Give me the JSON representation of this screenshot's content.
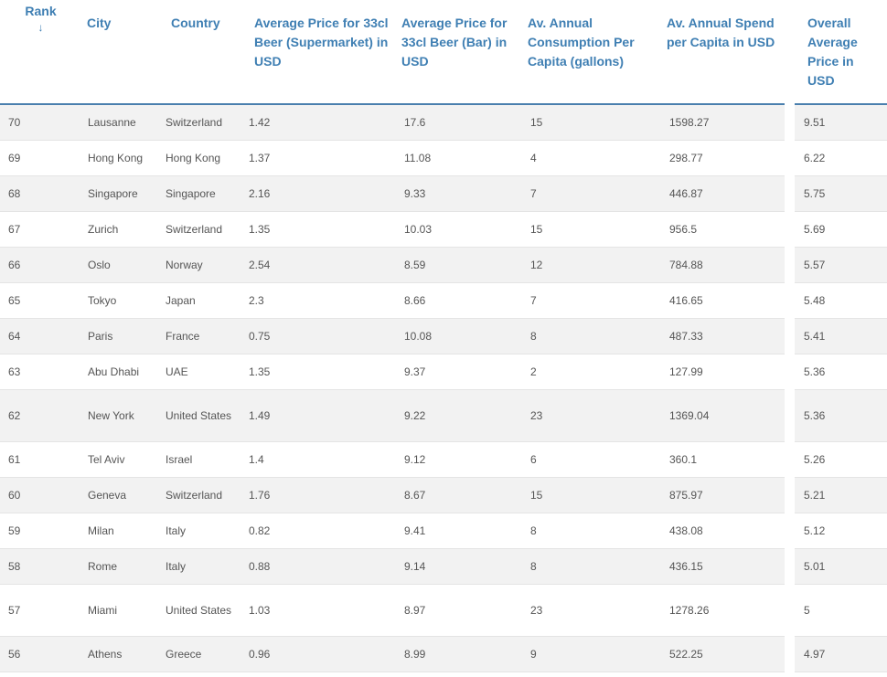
{
  "columns": {
    "rank": "Rank",
    "sort_indicator": "↓",
    "city": "City",
    "country": "Country",
    "supermarket": "Average Price for 33cl Beer (Supermarket) in USD",
    "bar": "Average Price for 33cl Beer (Bar) in USD",
    "consumption": "Av. Annual Consumption Per Capita (gallons)",
    "spend": "Av. Annual Spend per Capita in USD",
    "overall": "Overall Average Price in USD"
  },
  "rows": [
    {
      "rank": "70",
      "city": "Lausanne",
      "country": "Switzerland",
      "supermarket": "1.42",
      "bar": "17.6",
      "consumption": "15",
      "spend": "1598.27",
      "overall": "9.51"
    },
    {
      "rank": "69",
      "city": "Hong Kong",
      "country": "Hong Kong",
      "supermarket": "1.37",
      "bar": "11.08",
      "consumption": "4",
      "spend": "298.77",
      "overall": "6.22"
    },
    {
      "rank": "68",
      "city": "Singapore",
      "country": "Singapore",
      "supermarket": "2.16",
      "bar": "9.33",
      "consumption": "7",
      "spend": "446.87",
      "overall": "5.75"
    },
    {
      "rank": "67",
      "city": "Zurich",
      "country": "Switzerland",
      "supermarket": "1.35",
      "bar": "10.03",
      "consumption": "15",
      "spend": "956.5",
      "overall": "5.69"
    },
    {
      "rank": "66",
      "city": "Oslo",
      "country": "Norway",
      "supermarket": "2.54",
      "bar": "8.59",
      "consumption": "12",
      "spend": "784.88",
      "overall": "5.57"
    },
    {
      "rank": "65",
      "city": "Tokyo",
      "country": "Japan",
      "supermarket": "2.3",
      "bar": "8.66",
      "consumption": "7",
      "spend": "416.65",
      "overall": "5.48"
    },
    {
      "rank": "64",
      "city": "Paris",
      "country": "France",
      "supermarket": "0.75",
      "bar": "10.08",
      "consumption": "8",
      "spend": "487.33",
      "overall": "5.41"
    },
    {
      "rank": "63",
      "city": "Abu Dhabi",
      "country": "UAE",
      "supermarket": "1.35",
      "bar": "9.37",
      "consumption": "2",
      "spend": "127.99",
      "overall": "5.36"
    },
    {
      "rank": "62",
      "city": "New York",
      "country": "United States",
      "supermarket": "1.49",
      "bar": "9.22",
      "consumption": "23",
      "spend": "1369.04",
      "overall": "5.36"
    },
    {
      "rank": "61",
      "city": "Tel Aviv",
      "country": "Israel",
      "supermarket": "1.4",
      "bar": "9.12",
      "consumption": "6",
      "spend": "360.1",
      "overall": "5.26"
    },
    {
      "rank": "60",
      "city": "Geneva",
      "country": "Switzerland",
      "supermarket": "1.76",
      "bar": "8.67",
      "consumption": "15",
      "spend": "875.97",
      "overall": "5.21"
    },
    {
      "rank": "59",
      "city": "Milan",
      "country": "Italy",
      "supermarket": "0.82",
      "bar": "9.41",
      "consumption": "8",
      "spend": "438.08",
      "overall": "5.12"
    },
    {
      "rank": "58",
      "city": "Rome",
      "country": "Italy",
      "supermarket": "0.88",
      "bar": "9.14",
      "consumption": "8",
      "spend": "436.15",
      "overall": "5.01"
    },
    {
      "rank": "57",
      "city": "Miami",
      "country": "United States",
      "supermarket": "1.03",
      "bar": "8.97",
      "consumption": "23",
      "spend": "1278.26",
      "overall": "5"
    },
    {
      "rank": "56",
      "city": "Athens",
      "country": "Greece",
      "supermarket": "0.96",
      "bar": "8.99",
      "consumption": "9",
      "spend": "522.25",
      "overall": "4.97"
    }
  ],
  "colors": {
    "header_text": "#3f7fb3",
    "header_rule": "#4a7fae",
    "cell_text": "#555555",
    "row_stripe": "#f2f2f2"
  }
}
